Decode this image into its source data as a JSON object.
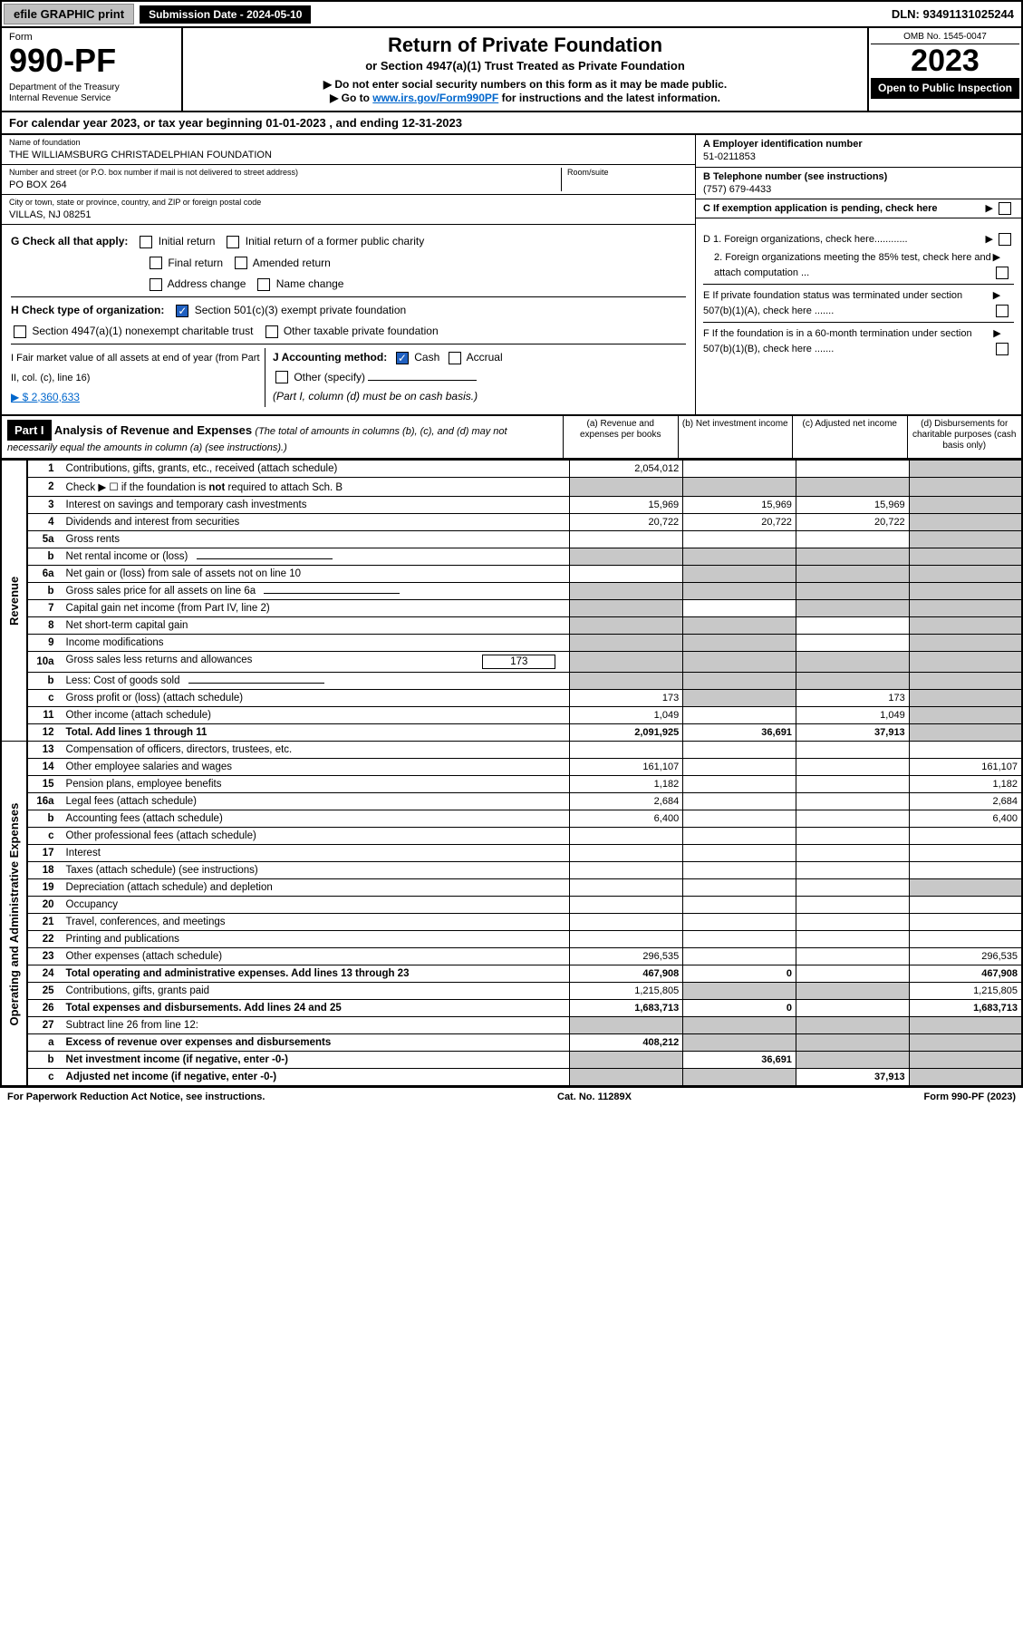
{
  "top": {
    "efile": "efile GRAPHIC print",
    "submission": "Submission Date - 2024-05-10",
    "dln": "DLN: 93491131025244"
  },
  "header": {
    "form_label": "Form",
    "form_number": "990-PF",
    "dept": "Department of the Treasury",
    "irs": "Internal Revenue Service",
    "title": "Return of Private Foundation",
    "subtitle": "or Section 4947(a)(1) Trust Treated as Private Foundation",
    "instr1": "▶ Do not enter social security numbers on this form as it may be made public.",
    "instr2_pre": "▶ Go to ",
    "instr2_link": "www.irs.gov/Form990PF",
    "instr2_post": " for instructions and the latest information.",
    "omb": "OMB No. 1545-0047",
    "year": "2023",
    "open": "Open to Public Inspection"
  },
  "cal_year": "For calendar year 2023, or tax year beginning 01-01-2023          , and ending 12-31-2023",
  "info": {
    "name_lbl": "Name of foundation",
    "name": "THE WILLIAMSBURG CHRISTADELPHIAN FOUNDATION",
    "addr_lbl": "Number and street (or P.O. box number if mail is not delivered to street address)",
    "addr": "PO BOX 264",
    "room_lbl": "Room/suite",
    "city_lbl": "City or town, state or province, country, and ZIP or foreign postal code",
    "city": "VILLAS, NJ  08251",
    "ein_lbl": "A Employer identification number",
    "ein": "51-0211853",
    "tel_lbl": "B Telephone number (see instructions)",
    "tel": "(757) 679-4433",
    "c_lbl": "C If exemption application is pending, check here"
  },
  "checks": {
    "g": "G Check all that apply:",
    "g_opts": [
      "Initial return",
      "Initial return of a former public charity",
      "Final return",
      "Amended return",
      "Address change",
      "Name change"
    ],
    "h": "H Check type of organization:",
    "h1": "Section 501(c)(3) exempt private foundation",
    "h2": "Section 4947(a)(1) nonexempt charitable trust",
    "h3": "Other taxable private foundation",
    "i_lbl": "I Fair market value of all assets at end of year (from Part II, col. (c), line 16)",
    "i_val": "▶ $  2,360,633",
    "j": "J Accounting method:",
    "j_cash": "Cash",
    "j_accrual": "Accrual",
    "j_other": "Other (specify)",
    "j_note": "(Part I, column (d) must be on cash basis.)",
    "d1": "D 1. Foreign organizations, check here............",
    "d2": "2. Foreign organizations meeting the 85% test, check here and attach computation ...",
    "e": "E  If private foundation status was terminated under section 507(b)(1)(A), check here .......",
    "f": "F  If the foundation is in a 60-month termination under section 507(b)(1)(B), check here ......."
  },
  "part1": {
    "label": "Part I",
    "title": "Analysis of Revenue and Expenses",
    "sub": "(The total of amounts in columns (b), (c), and (d) may not necessarily equal the amounts in column (a) (see instructions).)",
    "col_a": "(a)   Revenue and expenses per books",
    "col_b": "(b)   Net investment income",
    "col_c": "(c)   Adjusted net income",
    "col_d": "(d)   Disbursements for charitable purposes (cash basis only)"
  },
  "side_labels": {
    "revenue": "Revenue",
    "expenses": "Operating and Administrative Expenses"
  },
  "lines": [
    {
      "n": "1",
      "desc": "Contributions, gifts, grants, etc., received (attach schedule)",
      "a": "2,054,012",
      "b": "",
      "c": "",
      "d": "",
      "d_sh": true
    },
    {
      "n": "2",
      "desc": "Check ▶ ☐ if the foundation is not required to attach Sch. B",
      "a": "",
      "b": "",
      "c": "",
      "d": "",
      "a_sh": true,
      "b_sh": true,
      "c_sh": true,
      "d_sh": true,
      "bold_not": true
    },
    {
      "n": "3",
      "desc": "Interest on savings and temporary cash investments",
      "a": "15,969",
      "b": "15,969",
      "c": "15,969",
      "d": "",
      "d_sh": true
    },
    {
      "n": "4",
      "desc": "Dividends and interest from securities",
      "a": "20,722",
      "b": "20,722",
      "c": "20,722",
      "d": "",
      "d_sh": true
    },
    {
      "n": "5a",
      "desc": "Gross rents",
      "a": "",
      "b": "",
      "c": "",
      "d": "",
      "d_sh": true
    },
    {
      "n": "b",
      "desc": "Net rental income or (loss)",
      "a": "",
      "b": "",
      "c": "",
      "d": "",
      "a_sh": true,
      "b_sh": true,
      "c_sh": true,
      "d_sh": true,
      "inline": true
    },
    {
      "n": "6a",
      "desc": "Net gain or (loss) from sale of assets not on line 10",
      "a": "",
      "b": "",
      "c": "",
      "d": "",
      "b_sh": true,
      "c_sh": true,
      "d_sh": true
    },
    {
      "n": "b",
      "desc": "Gross sales price for all assets on line 6a",
      "a": "",
      "b": "",
      "c": "",
      "d": "",
      "a_sh": true,
      "b_sh": true,
      "c_sh": true,
      "d_sh": true,
      "inline": true
    },
    {
      "n": "7",
      "desc": "Capital gain net income (from Part IV, line 2)",
      "a": "",
      "b": "",
      "c": "",
      "d": "",
      "a_sh": true,
      "c_sh": true,
      "d_sh": true
    },
    {
      "n": "8",
      "desc": "Net short-term capital gain",
      "a": "",
      "b": "",
      "c": "",
      "d": "",
      "a_sh": true,
      "b_sh": true,
      "d_sh": true
    },
    {
      "n": "9",
      "desc": "Income modifications",
      "a": "",
      "b": "",
      "c": "",
      "d": "",
      "a_sh": true,
      "b_sh": true,
      "d_sh": true
    },
    {
      "n": "10a",
      "desc": "Gross sales less returns and allowances",
      "a": "",
      "b": "",
      "c": "",
      "d": "",
      "a_sh": true,
      "b_sh": true,
      "c_sh": true,
      "d_sh": true,
      "inline": true,
      "inline_val": "173"
    },
    {
      "n": "b",
      "desc": "Less: Cost of goods sold",
      "a": "",
      "b": "",
      "c": "",
      "d": "",
      "a_sh": true,
      "b_sh": true,
      "c_sh": true,
      "d_sh": true,
      "inline": true
    },
    {
      "n": "c",
      "desc": "Gross profit or (loss) (attach schedule)",
      "a": "173",
      "b": "",
      "c": "173",
      "d": "",
      "b_sh": true,
      "d_sh": true
    },
    {
      "n": "11",
      "desc": "Other income (attach schedule)",
      "a": "1,049",
      "b": "",
      "c": "1,049",
      "d": "",
      "d_sh": true
    },
    {
      "n": "12",
      "desc": "Total. Add lines 1 through 11",
      "a": "2,091,925",
      "b": "36,691",
      "c": "37,913",
      "d": "",
      "bold": true,
      "d_sh": true
    }
  ],
  "exp_lines": [
    {
      "n": "13",
      "desc": "Compensation of officers, directors, trustees, etc.",
      "a": "",
      "b": "",
      "c": "",
      "d": ""
    },
    {
      "n": "14",
      "desc": "Other employee salaries and wages",
      "a": "161,107",
      "b": "",
      "c": "",
      "d": "161,107"
    },
    {
      "n": "15",
      "desc": "Pension plans, employee benefits",
      "a": "1,182",
      "b": "",
      "c": "",
      "d": "1,182"
    },
    {
      "n": "16a",
      "desc": "Legal fees (attach schedule)",
      "a": "2,684",
      "b": "",
      "c": "",
      "d": "2,684"
    },
    {
      "n": "b",
      "desc": "Accounting fees (attach schedule)",
      "a": "6,400",
      "b": "",
      "c": "",
      "d": "6,400"
    },
    {
      "n": "c",
      "desc": "Other professional fees (attach schedule)",
      "a": "",
      "b": "",
      "c": "",
      "d": ""
    },
    {
      "n": "17",
      "desc": "Interest",
      "a": "",
      "b": "",
      "c": "",
      "d": ""
    },
    {
      "n": "18",
      "desc": "Taxes (attach schedule) (see instructions)",
      "a": "",
      "b": "",
      "c": "",
      "d": ""
    },
    {
      "n": "19",
      "desc": "Depreciation (attach schedule) and depletion",
      "a": "",
      "b": "",
      "c": "",
      "d": "",
      "d_sh": true
    },
    {
      "n": "20",
      "desc": "Occupancy",
      "a": "",
      "b": "",
      "c": "",
      "d": ""
    },
    {
      "n": "21",
      "desc": "Travel, conferences, and meetings",
      "a": "",
      "b": "",
      "c": "",
      "d": ""
    },
    {
      "n": "22",
      "desc": "Printing and publications",
      "a": "",
      "b": "",
      "c": "",
      "d": ""
    },
    {
      "n": "23",
      "desc": "Other expenses (attach schedule)",
      "a": "296,535",
      "b": "",
      "c": "",
      "d": "296,535"
    },
    {
      "n": "24",
      "desc": "Total operating and administrative expenses. Add lines 13 through 23",
      "a": "467,908",
      "b": "0",
      "c": "",
      "d": "467,908",
      "bold": true
    },
    {
      "n": "25",
      "desc": "Contributions, gifts, grants paid",
      "a": "1,215,805",
      "b": "",
      "c": "",
      "d": "1,215,805",
      "b_sh": true,
      "c_sh": true
    },
    {
      "n": "26",
      "desc": "Total expenses and disbursements. Add lines 24 and 25",
      "a": "1,683,713",
      "b": "0",
      "c": "",
      "d": "1,683,713",
      "bold": true
    },
    {
      "n": "27",
      "desc": "Subtract line 26 from line 12:",
      "a": "",
      "b": "",
      "c": "",
      "d": "",
      "a_sh": true,
      "b_sh": true,
      "c_sh": true,
      "d_sh": true
    },
    {
      "n": "a",
      "desc": "Excess of revenue over expenses and disbursements",
      "a": "408,212",
      "b": "",
      "c": "",
      "d": "",
      "bold": true,
      "b_sh": true,
      "c_sh": true,
      "d_sh": true
    },
    {
      "n": "b",
      "desc": "Net investment income (if negative, enter -0-)",
      "a": "",
      "b": "36,691",
      "c": "",
      "d": "",
      "bold": true,
      "a_sh": true,
      "c_sh": true,
      "d_sh": true
    },
    {
      "n": "c",
      "desc": "Adjusted net income (if negative, enter -0-)",
      "a": "",
      "b": "",
      "c": "37,913",
      "d": "",
      "bold": true,
      "a_sh": true,
      "b_sh": true,
      "d_sh": true
    }
  ],
  "footer": {
    "left": "For Paperwork Reduction Act Notice, see instructions.",
    "center": "Cat. No. 11289X",
    "right": "Form 990-PF (2023)"
  },
  "colors": {
    "shade": "#c8c8c8",
    "link": "#0066cc",
    "check_bg": "#2060c0"
  }
}
